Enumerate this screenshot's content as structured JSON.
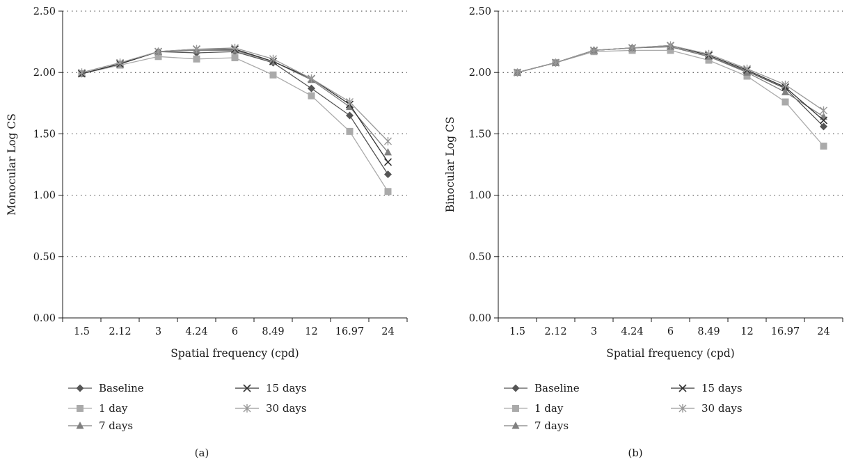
{
  "chart_data": [
    {
      "type": "line",
      "panel_label": "(a)",
      "xlabel": "Spatial frequency (cpd)",
      "ylabel": "Monocular Log CS",
      "categories": [
        "1.5",
        "2.12",
        "3",
        "4.24",
        "6",
        "8.49",
        "12",
        "16.97",
        "24"
      ],
      "ylim": [
        0,
        2.5
      ],
      "yticks": [
        "0.00",
        "0.50",
        "1.00",
        "1.50",
        "2.00",
        "2.50"
      ],
      "grid": "horizontal dotted",
      "legend_position": "bottom-left",
      "series": [
        {
          "name": "Baseline",
          "marker": "diamond",
          "color": "#555555",
          "values": [
            1.99,
            2.07,
            2.17,
            2.16,
            2.17,
            2.08,
            1.87,
            1.65,
            1.17
          ]
        },
        {
          "name": "1 day",
          "marker": "square",
          "color": "#aaaaaa",
          "values": [
            1.99,
            2.06,
            2.13,
            2.11,
            2.12,
            1.98,
            1.81,
            1.52,
            1.03
          ]
        },
        {
          "name": "7 days",
          "marker": "triangle",
          "color": "#808080",
          "values": [
            1.99,
            2.07,
            2.17,
            2.18,
            2.18,
            2.09,
            1.94,
            1.72,
            1.35
          ]
        },
        {
          "name": "15 days",
          "marker": "x",
          "color": "#333333",
          "values": [
            1.99,
            2.07,
            2.17,
            2.19,
            2.19,
            2.09,
            1.95,
            1.74,
            1.27
          ]
        },
        {
          "name": "30 days",
          "marker": "star",
          "color": "#999999",
          "values": [
            2.0,
            2.08,
            2.17,
            2.19,
            2.2,
            2.11,
            1.95,
            1.76,
            1.44
          ]
        }
      ]
    },
    {
      "type": "line",
      "panel_label": "(b)",
      "xlabel": "Spatial frequency (cpd)",
      "ylabel": "Binocular Log CS",
      "categories": [
        "1.5",
        "2.12",
        "3",
        "4.24",
        "6",
        "8.49",
        "12",
        "16.97",
        "24"
      ],
      "ylim": [
        0,
        2.5
      ],
      "yticks": [
        "0.00",
        "0.50",
        "1.00",
        "1.50",
        "2.00",
        "2.50"
      ],
      "grid": "horizontal dotted",
      "legend_position": "bottom-left",
      "series": [
        {
          "name": "Baseline",
          "marker": "diamond",
          "color": "#555555",
          "values": [
            2.0,
            2.08,
            2.18,
            2.2,
            2.21,
            2.13,
            2.01,
            1.87,
            1.56
          ]
        },
        {
          "name": "1 day",
          "marker": "square",
          "color": "#aaaaaa",
          "values": [
            2.0,
            2.08,
            2.17,
            2.18,
            2.18,
            2.1,
            1.97,
            1.76,
            1.4
          ]
        },
        {
          "name": "7 days",
          "marker": "triangle",
          "color": "#808080",
          "values": [
            2.0,
            2.08,
            2.18,
            2.2,
            2.21,
            2.13,
            2.0,
            1.84,
            1.64
          ]
        },
        {
          "name": "15 days",
          "marker": "x",
          "color": "#333333",
          "values": [
            2.0,
            2.08,
            2.18,
            2.2,
            2.22,
            2.14,
            2.02,
            1.88,
            1.61
          ]
        },
        {
          "name": "30 days",
          "marker": "star",
          "color": "#999999",
          "values": [
            2.0,
            2.08,
            2.18,
            2.2,
            2.22,
            2.15,
            2.03,
            1.9,
            1.69
          ]
        }
      ]
    }
  ]
}
